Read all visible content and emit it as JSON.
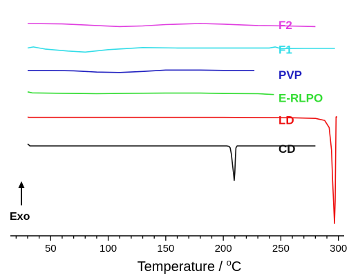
{
  "chart_data": {
    "type": "line",
    "title": "",
    "xlabel": "Temperature / °C",
    "xlabel_main": "Temperature / ",
    "xlabel_sup": "o",
    "xlabel_unit": "C",
    "ylabel": "",
    "xlim": [
      15,
      305
    ],
    "x_ticks": [
      50,
      100,
      150,
      200,
      250,
      300
    ],
    "x_tick_labels": [
      "50",
      "100",
      "150",
      "200",
      "250",
      "300"
    ],
    "y_axis_visible": false,
    "grid": false,
    "direction_label": "Exo",
    "series": [
      {
        "name": "F2",
        "color": "#e040e0",
        "baseline": 8.2,
        "points": [
          [
            30,
            8.2
          ],
          [
            60,
            8.18
          ],
          [
            90,
            8.1
          ],
          [
            110,
            8.05
          ],
          [
            130,
            8.08
          ],
          [
            150,
            8.15
          ],
          [
            180,
            8.2
          ],
          [
            200,
            8.17
          ],
          [
            230,
            8.1
          ],
          [
            255,
            8.08
          ],
          [
            280,
            8.05
          ]
        ]
      },
      {
        "name": "F1",
        "color": "#33dde8",
        "baseline": 7.0,
        "points": [
          [
            30,
            7.0
          ],
          [
            35,
            7.05
          ],
          [
            45,
            6.95
          ],
          [
            65,
            6.85
          ],
          [
            80,
            6.8
          ],
          [
            100,
            6.92
          ],
          [
            130,
            7.02
          ],
          [
            160,
            7.0
          ],
          [
            200,
            7.0
          ],
          [
            240,
            7.0
          ],
          [
            245,
            7.05
          ],
          [
            250,
            6.97
          ],
          [
            270,
            6.98
          ],
          [
            297,
            6.98
          ]
        ]
      },
      {
        "name": "PVP",
        "color": "#2020c0",
        "baseline": 5.9,
        "points": [
          [
            30,
            5.9
          ],
          [
            50,
            5.9
          ],
          [
            70,
            5.88
          ],
          [
            90,
            5.82
          ],
          [
            110,
            5.8
          ],
          [
            130,
            5.85
          ],
          [
            150,
            5.92
          ],
          [
            180,
            5.92
          ],
          [
            200,
            5.9
          ],
          [
            227,
            5.9
          ]
        ]
      },
      {
        "name": "E-RLPO",
        "color": "#33dd33",
        "baseline": 4.8,
        "points": [
          [
            30,
            4.85
          ],
          [
            34,
            4.8
          ],
          [
            60,
            4.78
          ],
          [
            90,
            4.76
          ],
          [
            120,
            4.78
          ],
          [
            150,
            4.79
          ],
          [
            180,
            4.79
          ],
          [
            200,
            4.77
          ],
          [
            230,
            4.76
          ],
          [
            244,
            4.72
          ]
        ]
      },
      {
        "name": "LD",
        "color": "#ee1111",
        "baseline": 3.6,
        "points": [
          [
            30,
            3.62
          ],
          [
            31,
            3.6
          ],
          [
            100,
            3.6
          ],
          [
            200,
            3.6
          ],
          [
            260,
            3.58
          ],
          [
            280,
            3.55
          ],
          [
            288,
            3.45
          ],
          [
            292,
            3.1
          ],
          [
            294,
            2.0
          ],
          [
            295,
            0.5
          ],
          [
            296,
            -0.8
          ],
          [
            296.6,
            -1.6
          ],
          [
            297.2,
            -0.5
          ],
          [
            297.6,
            1.8
          ],
          [
            298,
            3.62
          ],
          [
            299,
            3.62
          ]
        ]
      },
      {
        "name": "CD",
        "color": "#111111",
        "baseline": 2.2,
        "points": [
          [
            30,
            2.3
          ],
          [
            32,
            2.2
          ],
          [
            100,
            2.2
          ],
          [
            180,
            2.2
          ],
          [
            203,
            2.2
          ],
          [
            205,
            2.18
          ],
          [
            206,
            2.1
          ],
          [
            207,
            1.8
          ],
          [
            208,
            1.3
          ],
          [
            209,
            0.8
          ],
          [
            209.5,
            0.5
          ],
          [
            210,
            0.9
          ],
          [
            210.5,
            1.6
          ],
          [
            211,
            2.1
          ],
          [
            212,
            2.2
          ],
          [
            250,
            2.2
          ],
          [
            280,
            2.2
          ]
        ]
      }
    ]
  }
}
